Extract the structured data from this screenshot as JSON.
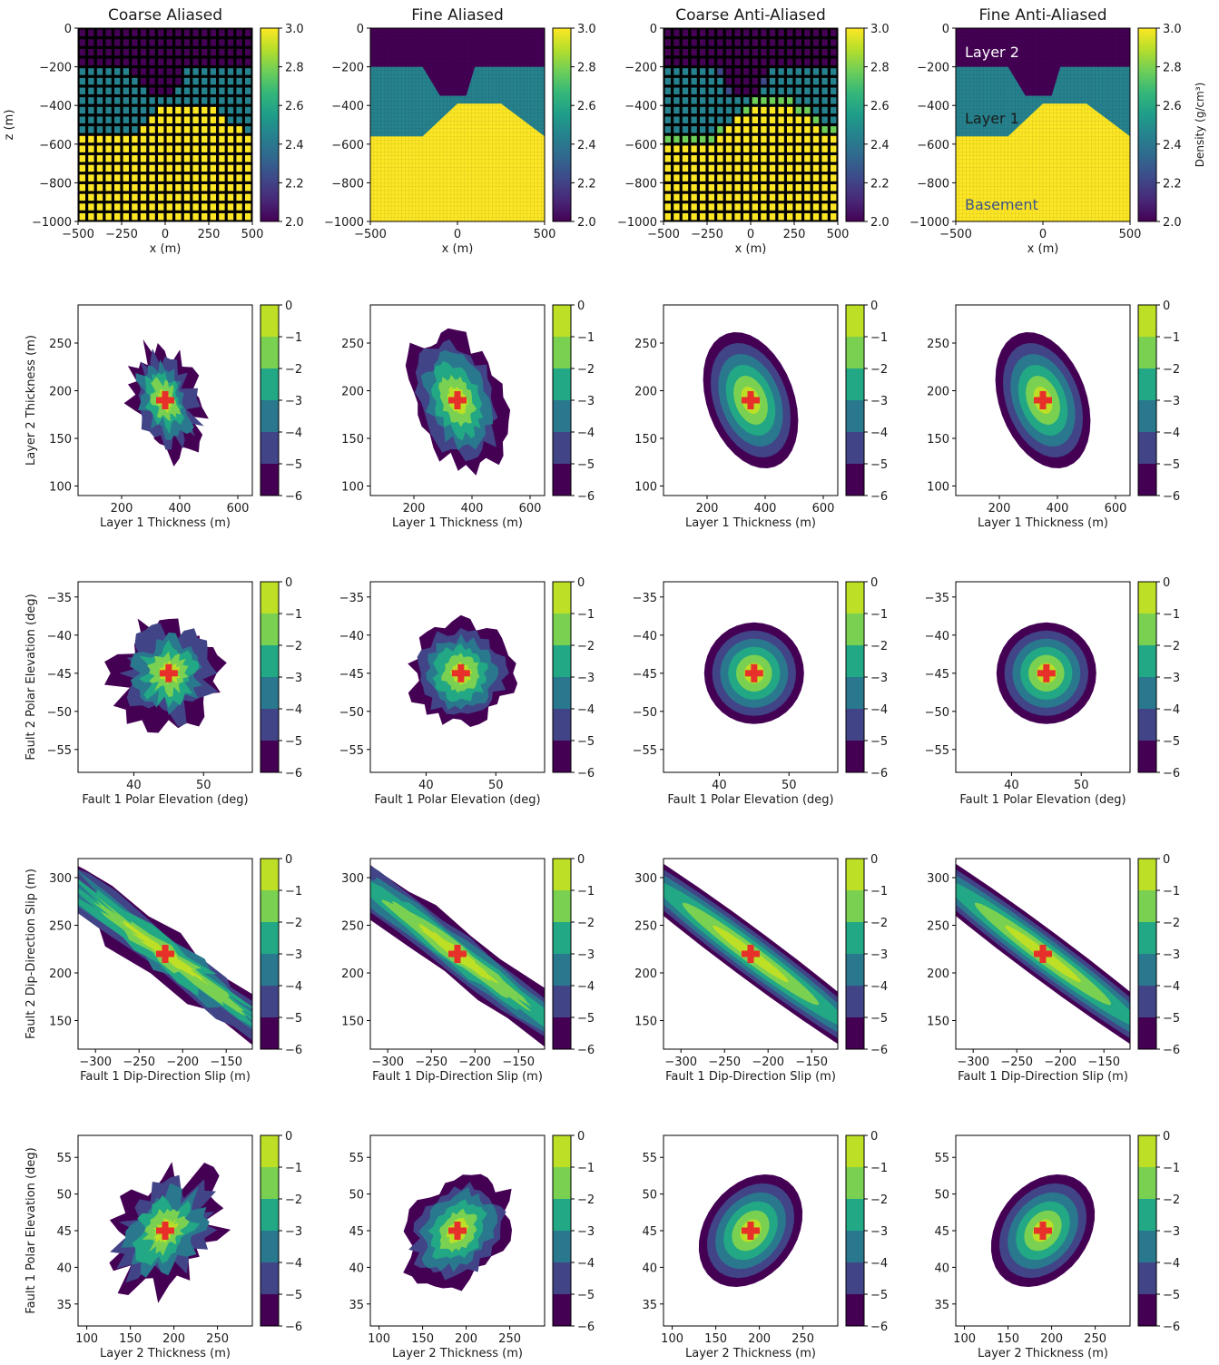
{
  "colors": {
    "viridis": [
      "#440154",
      "#482878",
      "#3e4989",
      "#31688e",
      "#26828e",
      "#1f9e89",
      "#35b779",
      "#6ece58",
      "#b5de2b",
      "#fde725"
    ],
    "contour_levels": [
      "#440154",
      "#414487",
      "#2a788e",
      "#22a884",
      "#7ad151",
      "#bddf26"
    ],
    "marker": "#e8302a",
    "label_layer2": "#ffffff",
    "label_layer1": "#1a1a1a",
    "label_basement": "#3b528b"
  },
  "column_titles": [
    "Coarse Aliased",
    "Fine Aliased",
    "Coarse Anti-Aliased",
    "Fine Anti-Aliased"
  ],
  "density_row": {
    "xlabel": "x (m)",
    "ylabel": "z (m)",
    "xticks": [
      "−500",
      "−250",
      "0",
      "250",
      "500"
    ],
    "xticks_fine": [
      "−500",
      "0",
      "500"
    ],
    "yticks": [
      "0",
      "−200",
      "−400",
      "−600",
      "−800",
      "−1000"
    ],
    "colorbar_ticks": [
      "3.0",
      "2.8",
      "2.6",
      "2.4",
      "2.2",
      "2.0"
    ],
    "colorbar_label": "Density (g/cm³)",
    "layer_labels": [
      "Layer 2",
      "Layer 1",
      "Basement"
    ]
  },
  "chart_data": [
    {
      "type": "heatmap",
      "row": 1,
      "description": "Density cross-sections",
      "xlim": [
        -500,
        500
      ],
      "ylim": [
        -1000,
        0
      ],
      "clim": [
        2.0,
        3.0
      ],
      "layers": [
        {
          "name": "Layer 2",
          "density": 2.0,
          "top": 0,
          "bottom": -200
        },
        {
          "name": "Layer 1",
          "density": 2.4,
          "top": -200,
          "bottom": -560
        },
        {
          "name": "Basement",
          "density": 3.0,
          "top_profile_x": [
            -500,
            -200,
            0,
            250,
            500
          ],
          "top_profile_z": [
            -560,
            -560,
            -390,
            -390,
            -560
          ]
        }
      ],
      "layer2_base_profile_x": [
        -500,
        -200,
        -100,
        50,
        100,
        500
      ],
      "layer2_base_profile_z": [
        -200,
        -200,
        -350,
        -350,
        -200,
        -200
      ]
    },
    {
      "type": "contour",
      "row": 2,
      "xlabel": "Layer 1 Thickness (m)",
      "ylabel": "Layer 2 Thickness (m)",
      "xlim": [
        50,
        650
      ],
      "ylim": [
        90,
        290
      ],
      "xticks": [
        "200",
        "400",
        "600"
      ],
      "xtick_values": [
        200,
        400,
        600
      ],
      "yticks": [
        "100",
        "150",
        "200",
        "250"
      ],
      "ytick_values": [
        100,
        150,
        200,
        250
      ],
      "true_value": [
        350,
        190
      ],
      "levels": [
        0,
        -1,
        -2,
        -3,
        -4,
        -5,
        -6
      ],
      "colorbar_ticks": [
        "0",
        "−1",
        "−2",
        "−3",
        "−4",
        "−5",
        "−6"
      ]
    },
    {
      "type": "contour",
      "row": 3,
      "xlabel": "Fault 1 Polar Elevation (deg)",
      "ylabel": "Fault 2 Polar Elevation (deg)",
      "xlim": [
        32,
        57
      ],
      "ylim": [
        -58,
        -33
      ],
      "xticks": [
        "40",
        "50"
      ],
      "xtick_values": [
        40,
        50
      ],
      "yticks": [
        "−35",
        "−40",
        "−45",
        "−50",
        "−55"
      ],
      "ytick_values": [
        -35,
        -40,
        -45,
        -50,
        -55
      ],
      "true_value": [
        45,
        -45
      ],
      "levels": [
        0,
        -1,
        -2,
        -3,
        -4,
        -5,
        -6
      ],
      "colorbar_ticks": [
        "0",
        "−1",
        "−2",
        "−3",
        "−4",
        "−5",
        "−6"
      ]
    },
    {
      "type": "contour",
      "row": 4,
      "xlabel": "Fault 1 Dip-Direction Slip (m)",
      "ylabel": "Fault 2 Dip-Direction Slip (m)",
      "xlim": [
        -320,
        -120
      ],
      "ylim": [
        120,
        320
      ],
      "xticks": [
        "−300",
        "−250",
        "−200",
        "−150"
      ],
      "xtick_values": [
        -300,
        -250,
        -200,
        -150
      ],
      "yticks": [
        "150",
        "200",
        "250",
        "300"
      ],
      "ytick_values": [
        150,
        200,
        250,
        300
      ],
      "true_value": [
        -220,
        220
      ],
      "levels": [
        0,
        -1,
        -2,
        -3,
        -4,
        -5,
        -6
      ],
      "colorbar_ticks": [
        "0",
        "−1",
        "−2",
        "−3",
        "−4",
        "−5",
        "−6"
      ]
    },
    {
      "type": "contour",
      "row": 5,
      "xlabel": "Layer 2 Thickness (m)",
      "ylabel": "Fault 1 Polar Elevation (deg)",
      "xlim": [
        90,
        290
      ],
      "ylim": [
        32,
        58
      ],
      "xticks": [
        "100",
        "150",
        "200",
        "250"
      ],
      "xtick_values": [
        100,
        150,
        200,
        250
      ],
      "yticks": [
        "35",
        "40",
        "45",
        "50",
        "55"
      ],
      "ytick_values": [
        35,
        40,
        45,
        50,
        55
      ],
      "true_value": [
        190,
        45
      ],
      "levels": [
        0,
        -1,
        -2,
        -3,
        -4,
        -5,
        -6
      ],
      "colorbar_ticks": [
        "0",
        "−1",
        "−2",
        "−3",
        "−4",
        "−5",
        "−6"
      ]
    }
  ]
}
